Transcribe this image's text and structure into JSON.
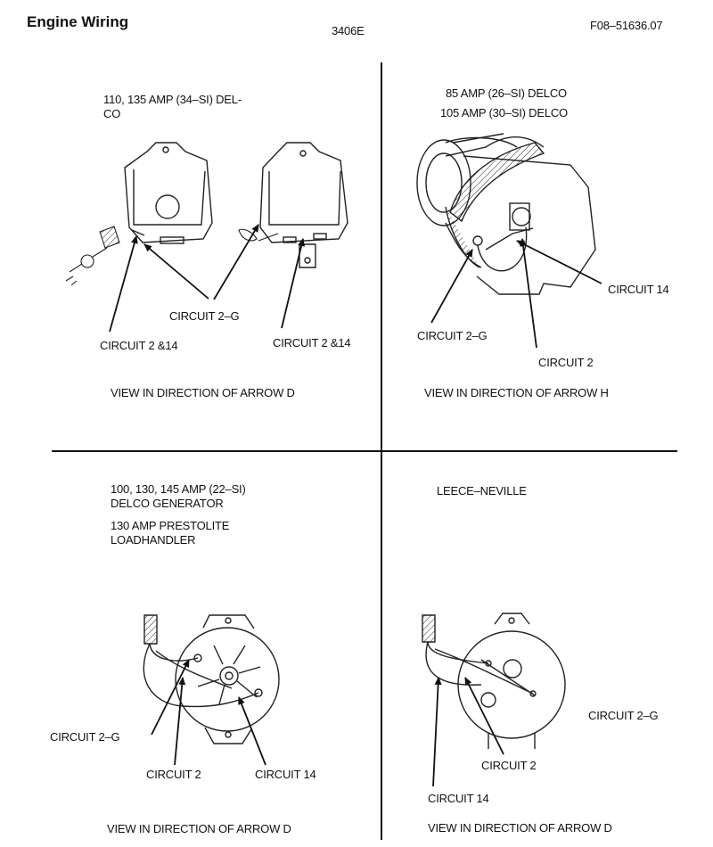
{
  "header": {
    "section_title": "Engine Wiring",
    "engine_model": "3406E",
    "figure_number": "F08–51636.07"
  },
  "panels": {
    "top_left": {
      "heading_line1": "110, 135 AMP (34–SI) DEL-",
      "heading_line2": "CO",
      "callout_circuit_2g": "CIRCUIT 2–G",
      "callout_circuit_2_14_left": "CIRCUIT 2 &14",
      "callout_circuit_2_14_right": "CIRCUIT 2 &14",
      "view_caption": "VIEW IN DIRECTION OF ARROW D"
    },
    "top_right": {
      "heading_line1": "85 AMP (26–SI) DELCO",
      "heading_line2": "105 AMP (30–SI) DELCO",
      "callout_circuit_14": "CIRCUIT 14",
      "callout_circuit_2g": "CIRCUIT 2–G",
      "callout_circuit_2": "CIRCUIT 2",
      "view_caption": "VIEW IN DIRECTION OF ARROW H"
    },
    "bottom_left": {
      "heading_line1": "100, 130, 145 AMP (22–SI)",
      "heading_line2": "DELCO GENERATOR",
      "heading_line3": "130 AMP PRESTOLITE",
      "heading_line4": "LOADHANDLER",
      "callout_circuit_2g": "CIRCUIT 2–G",
      "callout_circuit_2": "CIRCUIT 2",
      "callout_circuit_14": "CIRCUIT 14",
      "view_caption": "VIEW IN DIRECTION OF ARROW D"
    },
    "bottom_right": {
      "heading_line1": "LEECE–NEVILLE",
      "callout_circuit_2g": "CIRCUIT 2–G",
      "callout_circuit_2": "CIRCUIT 2",
      "callout_circuit_14": "CIRCUIT 14",
      "view_caption": "VIEW IN DIRECTION OF ARROW D"
    }
  }
}
